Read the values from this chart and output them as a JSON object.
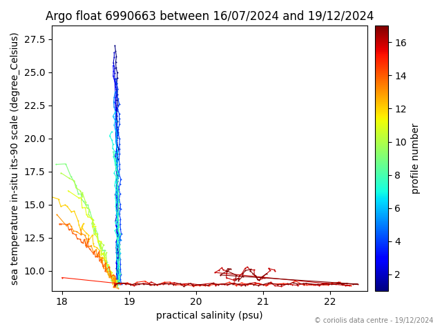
{
  "title": "Argo float 6990663 between 16/07/2024 and 19/12/2024",
  "xlabel": "practical salinity (psu)",
  "ylabel": "sea temperature in-situ its-90 scale (degree_Celsius)",
  "cbar_label": "profile number",
  "copyright": "© coriolis data centre - 19/12/2024",
  "xlim": [
    17.85,
    22.55
  ],
  "ylim": [
    8.5,
    28.5
  ],
  "xticks": [
    18,
    19,
    20,
    21,
    22
  ],
  "yticks": [
    10.0,
    12.5,
    15.0,
    17.5,
    20.0,
    22.5,
    25.0,
    27.5
  ],
  "n_profiles": 17,
  "cmap": "jet",
  "vmin": 1,
  "vmax": 17,
  "cbar_ticks": [
    2,
    4,
    6,
    8,
    10,
    12,
    14,
    16
  ],
  "marker": ".",
  "markersize": 3,
  "linewidth": 0.8,
  "figsize": [
    6.4,
    4.8
  ],
  "dpi": 100
}
